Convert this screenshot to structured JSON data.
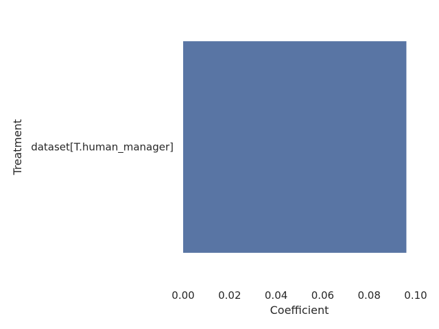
{
  "chart_data": {
    "type": "bar",
    "orientation": "horizontal",
    "categories": [
      "dataset[T.human_manager]"
    ],
    "values": [
      0.096
    ],
    "xlabel": "Coefficient",
    "ylabel": "Treatment",
    "xlim": [
      0.0,
      0.1
    ],
    "xticks": [
      "0.00",
      "0.02",
      "0.04",
      "0.06",
      "0.08",
      "0.10"
    ],
    "grid": false,
    "bar_color": "#5975a4",
    "background": "#ffffff"
  }
}
